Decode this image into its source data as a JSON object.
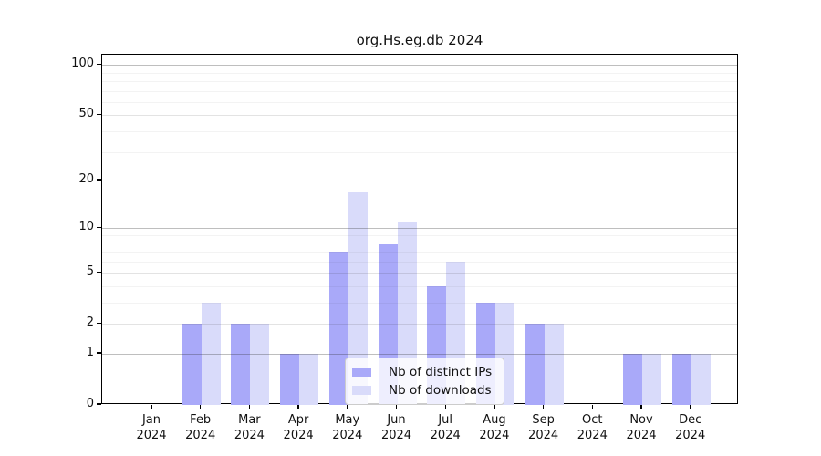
{
  "chart_data": {
    "type": "bar",
    "title": "org.Hs.eg.db 2024",
    "categories": [
      "Jan",
      "Feb",
      "Mar",
      "Apr",
      "May",
      "Jun",
      "Jul",
      "Aug",
      "Sep",
      "Oct",
      "Nov",
      "Dec"
    ],
    "category_year": "2024",
    "series": [
      {
        "name": "Nb of distinct IPs",
        "color": "#a9a9f9",
        "values": [
          0,
          2,
          2,
          1,
          7,
          8,
          4,
          3,
          2,
          0,
          1,
          1
        ]
      },
      {
        "name": "Nb of downloads",
        "color": "#d9dbfa",
        "values": [
          0,
          3,
          2,
          1,
          17,
          11,
          6,
          3,
          2,
          0,
          1,
          1
        ]
      }
    ],
    "xlabel": "",
    "ylabel": "",
    "yscale": "log1p",
    "ylim": [
      0,
      115
    ],
    "y_ticks": [
      0,
      1,
      2,
      5,
      10,
      20,
      50,
      100
    ],
    "y_gridlines_strong": [
      1,
      10,
      100
    ],
    "y_gridlines_medium": [
      2,
      5,
      20,
      50
    ],
    "y_gridlines_minor": [
      3,
      4,
      6,
      7,
      8,
      9,
      30,
      40,
      60,
      70,
      80,
      90
    ],
    "grid": true,
    "grid_over_bars": true,
    "legend_position": "lower-center",
    "colors": {
      "axis": "#000000",
      "text": "#111111",
      "background": "#ffffff"
    }
  }
}
